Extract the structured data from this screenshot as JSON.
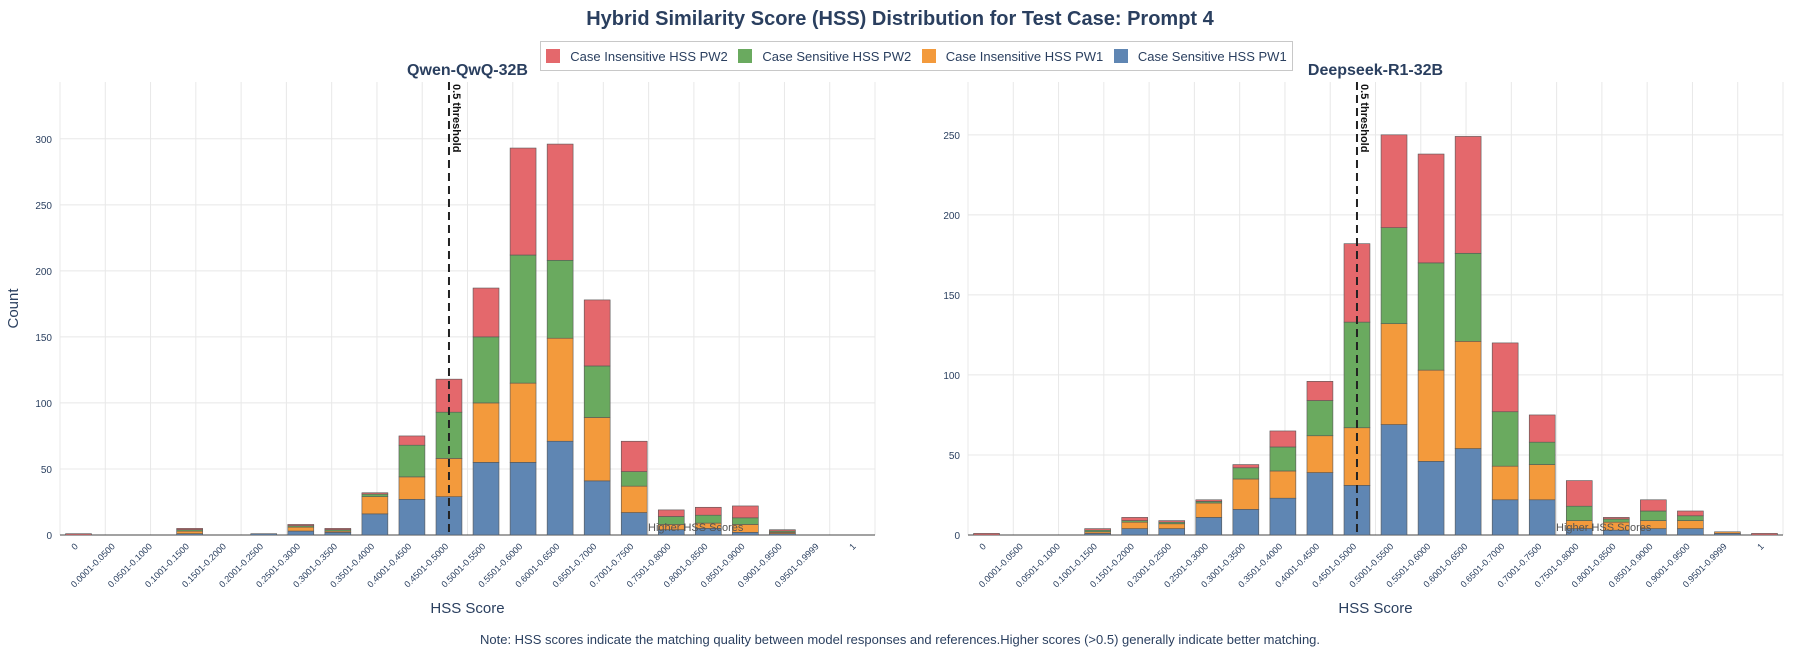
{
  "title": "Hybrid Similarity Score (HSS) Distribution for Test Case: Prompt 4",
  "note": "Note: HSS scores indicate the matching quality between model responses and references.Higher scores (>0.5) generally indicate better matching.",
  "legend": [
    {
      "name": "Case Insensitive HSS PW2",
      "color": "#e4686c"
    },
    {
      "name": "Case Sensitive HSS PW2",
      "color": "#6aaa5f"
    },
    {
      "name": "Case Insensitive HSS PW1",
      "color": "#f39a3c"
    },
    {
      "name": "Case Sensitive HSS PW1",
      "color": "#5f86b3"
    }
  ],
  "chart_data": [
    {
      "type": "bar",
      "stacked": true,
      "title": "Qwen-QwQ-32B",
      "xlabel": "HSS Score",
      "ylabel": "Count",
      "ylim": [
        0,
        343
      ],
      "yticks": [
        0,
        50,
        100,
        150,
        200,
        250,
        300
      ],
      "categories": [
        "0",
        "0.0001-0.0500",
        "0.0501-0.1000",
        "0.1001-0.1500",
        "0.1501-0.2000",
        "0.2001-0.2500",
        "0.2501-0.3000",
        "0.3001-0.3500",
        "0.3501-0.4000",
        "0.4001-0.4500",
        "0.4501-0.5000",
        "0.5001-0.5500",
        "0.5501-0.6000",
        "0.6001-0.6500",
        "0.6501-0.7000",
        "0.7001-0.7500",
        "0.7501-0.8000",
        "0.8001-0.8500",
        "0.8501-0.9000",
        "0.9001-0.9500",
        "0.9501-0.9999",
        "1"
      ],
      "series": [
        {
          "name": "Case Sensitive HSS PW1",
          "color": "#5f86b3",
          "values": [
            0,
            0,
            0,
            1,
            0,
            1,
            3,
            2,
            16,
            27,
            29,
            55,
            55,
            71,
            41,
            17,
            4,
            5,
            2,
            1,
            0,
            0
          ]
        },
        {
          "name": "Case Insensitive HSS PW1",
          "color": "#f39a3c",
          "values": [
            0,
            0,
            0,
            2,
            0,
            0,
            3,
            1,
            13,
            17,
            29,
            45,
            60,
            78,
            48,
            20,
            4,
            4,
            6,
            1,
            0,
            0
          ]
        },
        {
          "name": "Case Sensitive HSS PW2",
          "color": "#6aaa5f",
          "values": [
            0,
            0,
            0,
            1,
            0,
            0,
            1,
            1,
            2,
            24,
            35,
            50,
            97,
            59,
            39,
            11,
            6,
            6,
            5,
            1,
            0,
            0
          ]
        },
        {
          "name": "Case Insensitive HSS PW2",
          "color": "#e4686c",
          "values": [
            1,
            0,
            0,
            1,
            0,
            0,
            1,
            1,
            1,
            7,
            25,
            37,
            81,
            88,
            50,
            23,
            5,
            6,
            9,
            1,
            0,
            0
          ]
        }
      ],
      "threshold": {
        "x": 0.5,
        "label": "0.5 threshold"
      },
      "annotation": "Higher HSS Scores"
    },
    {
      "type": "bar",
      "stacked": true,
      "title": "Deepseek-R1-32B",
      "xlabel": "HSS Score",
      "ylabel": "",
      "ylim": [
        0,
        283
      ],
      "yticks": [
        0,
        50,
        100,
        150,
        200,
        250
      ],
      "categories": [
        "0",
        "0.0001-0.0500",
        "0.0501-0.1000",
        "0.1001-0.1500",
        "0.1501-0.2000",
        "0.2001-0.2500",
        "0.2501-0.3000",
        "0.3001-0.3500",
        "0.3501-0.4000",
        "0.4001-0.4500",
        "0.4501-0.5000",
        "0.5001-0.5500",
        "0.5501-0.6000",
        "0.6001-0.6500",
        "0.6501-0.7000",
        "0.7001-0.7500",
        "0.7501-0.8000",
        "0.8001-0.8500",
        "0.8501-0.9000",
        "0.9001-0.9500",
        "0.9501-0.9999",
        "1"
      ],
      "series": [
        {
          "name": "Case Sensitive HSS PW1",
          "color": "#5f86b3",
          "values": [
            0,
            0,
            0,
            1,
            4,
            4,
            11,
            16,
            23,
            39,
            31,
            69,
            46,
            54,
            22,
            22,
            4,
            3,
            4,
            4,
            1,
            0
          ]
        },
        {
          "name": "Case Insensitive HSS PW1",
          "color": "#f39a3c",
          "values": [
            0,
            0,
            0,
            1,
            4,
            3,
            9,
            19,
            17,
            23,
            36,
            63,
            57,
            67,
            21,
            22,
            5,
            5,
            5,
            5,
            1,
            0
          ]
        },
        {
          "name": "Case Sensitive HSS PW2",
          "color": "#6aaa5f",
          "values": [
            0,
            0,
            0,
            1,
            1,
            1,
            1,
            7,
            15,
            22,
            66,
            60,
            67,
            55,
            34,
            14,
            9,
            2,
            6,
            3,
            0,
            0
          ]
        },
        {
          "name": "Case Insensitive HSS PW2",
          "color": "#e4686c",
          "values": [
            1,
            0,
            0,
            1,
            2,
            1,
            1,
            2,
            10,
            12,
            49,
            58,
            68,
            73,
            43,
            17,
            16,
            1,
            7,
            3,
            0,
            1
          ]
        }
      ],
      "threshold": {
        "x": 0.5,
        "label": "0.5 threshold"
      },
      "annotation": "Higher HSS Scores"
    }
  ]
}
